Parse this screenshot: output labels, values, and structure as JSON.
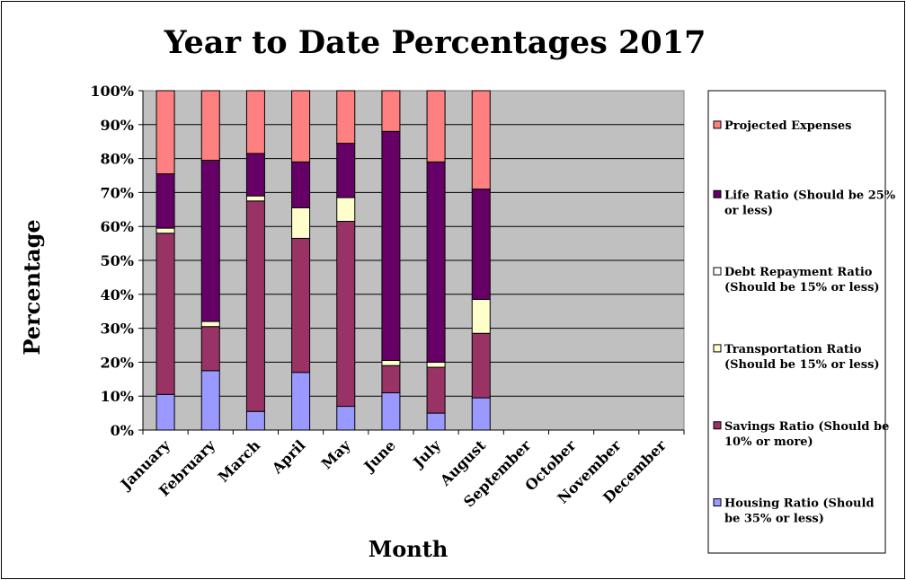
{
  "chart_data": {
    "type": "bar",
    "stacked": true,
    "percent_stacked": true,
    "title": "Year to Date Percentages 2017",
    "xlabel": "Month",
    "ylabel": "Percentage",
    "ylim": [
      0,
      100
    ],
    "yticks": [
      "0%",
      "10%",
      "20%",
      "30%",
      "40%",
      "50%",
      "60%",
      "70%",
      "80%",
      "90%",
      "100%"
    ],
    "categories": [
      "January",
      "February",
      "March",
      "April",
      "May",
      "June",
      "July",
      "August",
      "September",
      "October",
      "November",
      "December"
    ],
    "grid": true,
    "legend_position": "right",
    "series": [
      {
        "name": "Housing Ratio (Should be 35% or less)",
        "color": "#9999FF",
        "values": [
          10.5,
          17.5,
          5.5,
          17,
          7,
          11,
          5,
          9.5,
          null,
          null,
          null,
          null
        ]
      },
      {
        "name": "Savings Ratio (Should be 10% or more)",
        "color": "#993366",
        "values": [
          47.5,
          13,
          62,
          39.5,
          54.5,
          8,
          13.5,
          19,
          null,
          null,
          null,
          null
        ]
      },
      {
        "name": "Transportation Ratio (Should be 15% or less)",
        "color": "#FFFFCC",
        "values": [
          1.5,
          1.5,
          1.5,
          9,
          7,
          1.5,
          1.5,
          10,
          null,
          null,
          null,
          null
        ]
      },
      {
        "name": "Debt Repayment Ratio (Should be 15% or less)",
        "color": "#FFFFFF",
        "values": [
          0,
          0,
          0,
          0,
          0,
          0,
          0,
          0,
          null,
          null,
          null,
          null
        ]
      },
      {
        "name": "Life Ratio (Should be 25% or less)",
        "color": "#660066",
        "values": [
          16,
          47.5,
          12.5,
          13.5,
          16,
          67.5,
          59,
          32.5,
          null,
          null,
          null,
          null
        ]
      },
      {
        "name": "Projected Expenses",
        "color": "#FF8080",
        "values": [
          24.5,
          20.5,
          18.5,
          21,
          15.5,
          12,
          21,
          29,
          null,
          null,
          null,
          null
        ]
      }
    ],
    "legend_lines": [
      [
        "Projected Expenses"
      ],
      [
        "Life Ratio (Should be 25%",
        "or less)"
      ],
      [
        "Debt Repayment Ratio",
        "(Should be 15% or less)"
      ],
      [
        "Transportation Ratio",
        "(Should be 15% or less)"
      ],
      [
        "Savings Ratio (Should be",
        "10% or more)"
      ],
      [
        "Housing Ratio (Should",
        "be 35% or less)"
      ]
    ]
  }
}
